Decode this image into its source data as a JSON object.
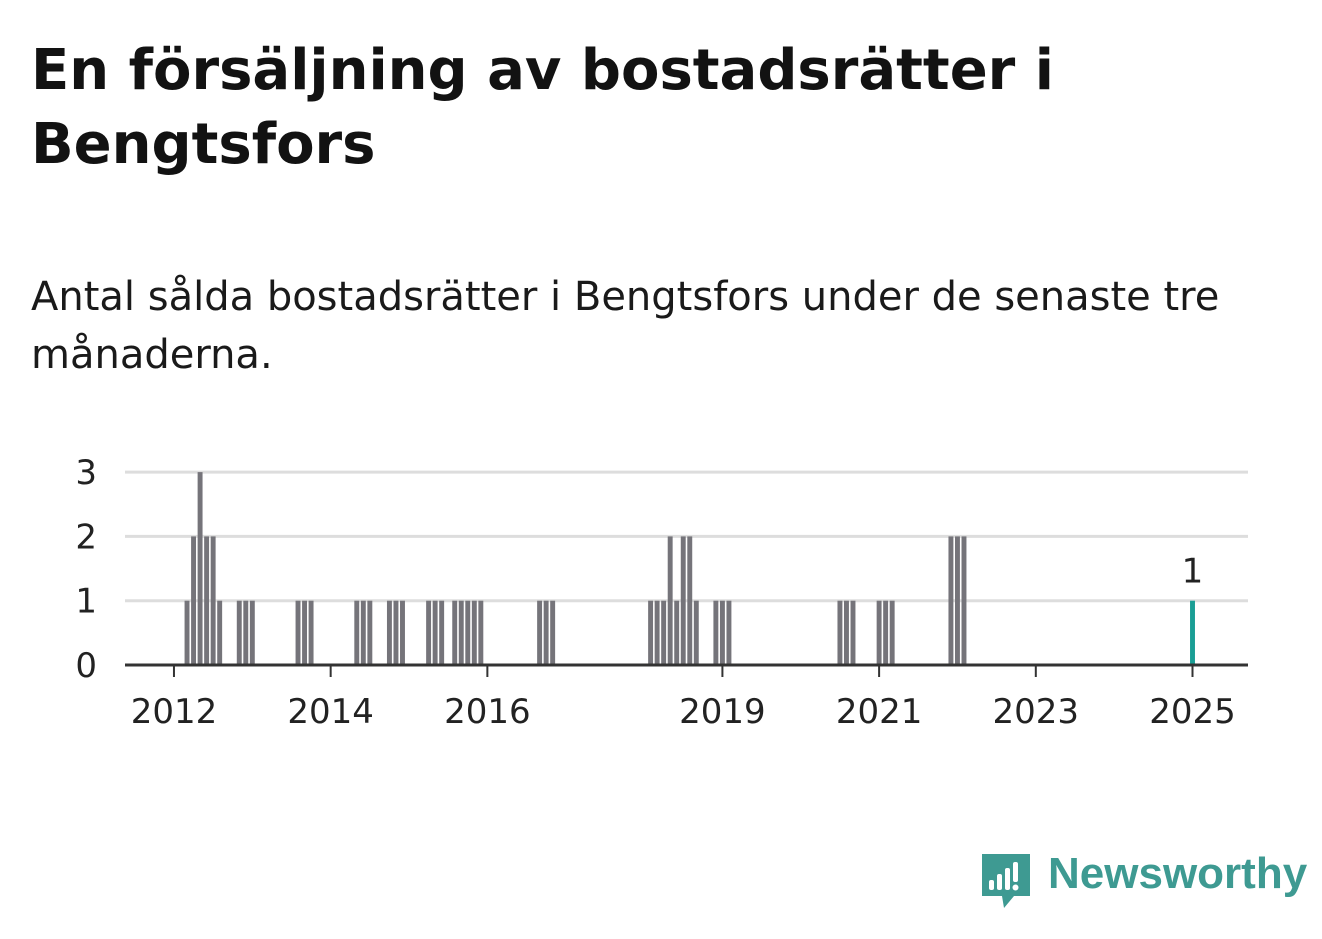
{
  "title": "En försäljning av bostadsrätter i Bengtsfors",
  "subtitle": "Antal sålda bostadsrätter i Bengtsfors under de senaste tre månaderna.",
  "brand": {
    "name": "Newsworthy",
    "icon": "newsworthy-logo-icon",
    "color": "#3e9a92"
  },
  "chart_data": {
    "type": "bar",
    "title": "",
    "xlabel": "",
    "ylabel": "",
    "ylim": [
      0,
      3
    ],
    "yticks": [
      "0",
      "1",
      "2",
      "3"
    ],
    "xlim": [
      "2011-06",
      "2025-10"
    ],
    "xticks": [
      {
        "label": "2012",
        "month": "2012-01"
      },
      {
        "label": "2014",
        "month": "2014-01"
      },
      {
        "label": "2016",
        "month": "2016-01"
      },
      {
        "label": "2019",
        "month": "2019-01"
      },
      {
        "label": "2021",
        "month": "2021-01"
      },
      {
        "label": "2023",
        "month": "2023-01"
      },
      {
        "label": "2025",
        "month": "2025-01"
      }
    ],
    "grid": true,
    "colors": {
      "bar": "#75747a",
      "highlight": "#1a9e95",
      "grid": "#dddddd",
      "axis": "#333333"
    },
    "highlight_label": "1",
    "series": [
      {
        "x": [
          "2012-03",
          "2012-04",
          "2012-05",
          "2012-06",
          "2012-07",
          "2012-08",
          "2012-11",
          "2012-12",
          "2013-01",
          "2013-08",
          "2013-09",
          "2013-10",
          "2014-05",
          "2014-06",
          "2014-07",
          "2014-10",
          "2014-11",
          "2014-12",
          "2015-04",
          "2015-05",
          "2015-06",
          "2015-08",
          "2015-09",
          "2015-10",
          "2015-11",
          "2015-12",
          "2016-09",
          "2016-10",
          "2016-11",
          "2018-02",
          "2018-03",
          "2018-04",
          "2018-05",
          "2018-06",
          "2018-07",
          "2018-08",
          "2018-09",
          "2018-12",
          "2019-01",
          "2019-02",
          "2020-07",
          "2020-08",
          "2020-09",
          "2021-01",
          "2021-02",
          "2021-03",
          "2021-12",
          "2022-01",
          "2022-02",
          "2025-01"
        ],
        "values": [
          1,
          2,
          3,
          2,
          2,
          1,
          1,
          1,
          1,
          1,
          1,
          1,
          1,
          1,
          1,
          1,
          1,
          1,
          1,
          1,
          1,
          1,
          1,
          1,
          1,
          1,
          1,
          1,
          1,
          1,
          1,
          1,
          2,
          1,
          2,
          2,
          1,
          1,
          1,
          1,
          1,
          1,
          1,
          1,
          1,
          1,
          2,
          2,
          2,
          1
        ],
        "highlight_index": 49
      }
    ]
  }
}
